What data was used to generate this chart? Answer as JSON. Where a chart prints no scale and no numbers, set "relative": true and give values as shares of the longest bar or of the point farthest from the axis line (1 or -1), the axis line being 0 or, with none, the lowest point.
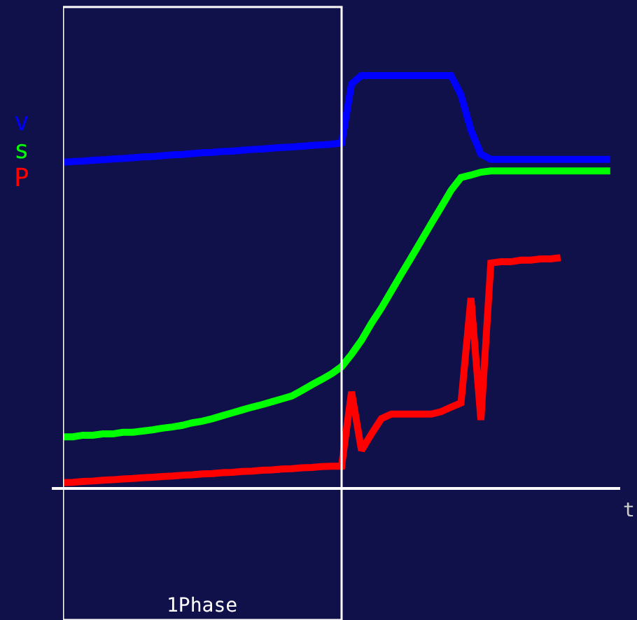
{
  "chart_data": {
    "type": "line",
    "relative": true,
    "xlabel": "t",
    "annotations": [
      "1Phase"
    ],
    "legend": "left",
    "marker": "none",
    "line_style": "solid",
    "categories": [
      null,
      null,
      null,
      null,
      null,
      null,
      null,
      null,
      null,
      null,
      null,
      null,
      null,
      null,
      null,
      null,
      null,
      null,
      null,
      null,
      null,
      null,
      null,
      null,
      null,
      null,
      null,
      null,
      null,
      null,
      null,
      null,
      null,
      null,
      null,
      null,
      null,
      null,
      null,
      null,
      null,
      null,
      null,
      null,
      null,
      null,
      null,
      null,
      null,
      null,
      null,
      null,
      null,
      null,
      null,
      null
    ],
    "series": [
      {
        "name": "v",
        "color": "#0000ff",
        "values": [
          0.79,
          0.792,
          0.793,
          0.795,
          0.796,
          0.798,
          0.799,
          0.801,
          0.803,
          0.804,
          0.806,
          0.808,
          0.809,
          0.811,
          0.813,
          0.814,
          0.816,
          0.817,
          0.819,
          0.821,
          0.822,
          0.824,
          0.826,
          0.827,
          0.829,
          0.831,
          0.832,
          0.834,
          0.837,
          0.98,
          1.0,
          1.0,
          1.0,
          1.0,
          1.0,
          1.0,
          1.0,
          1.0,
          1.0,
          1.0,
          0.953,
          0.868,
          0.81,
          0.797,
          0.797,
          0.797,
          0.797,
          0.797,
          0.797,
          0.797,
          0.797,
          0.797,
          0.797,
          0.797,
          0.797,
          0.797
        ]
      },
      {
        "name": "s",
        "color": "#00ff00",
        "values": [
          0.125,
          0.125,
          0.129,
          0.129,
          0.132,
          0.132,
          0.136,
          0.136,
          0.139,
          0.142,
          0.146,
          0.149,
          0.153,
          0.159,
          0.163,
          0.169,
          0.176,
          0.183,
          0.19,
          0.197,
          0.203,
          0.21,
          0.217,
          0.224,
          0.237,
          0.251,
          0.264,
          0.278,
          0.295,
          0.325,
          0.359,
          0.4,
          0.437,
          0.478,
          0.519,
          0.559,
          0.6,
          0.641,
          0.681,
          0.722,
          0.753,
          0.759,
          0.766,
          0.769,
          0.769,
          0.769,
          0.769,
          0.769,
          0.769,
          0.769,
          0.769,
          0.769,
          0.769,
          0.769,
          0.769,
          0.769
        ]
      },
      {
        "name": "P",
        "color": "#ff0000",
        "values": [
          0.014,
          0.015,
          0.017,
          0.018,
          0.02,
          0.021,
          0.023,
          0.024,
          0.026,
          0.027,
          0.029,
          0.03,
          0.032,
          0.033,
          0.035,
          0.036,
          0.038,
          0.039,
          0.041,
          0.042,
          0.044,
          0.045,
          0.047,
          0.048,
          0.05,
          0.051,
          0.053,
          0.054,
          0.054,
          0.234,
          0.092,
          0.132,
          0.169,
          0.18,
          0.18,
          0.18,
          0.18,
          0.18,
          0.186,
          0.197,
          0.207,
          0.461,
          0.166,
          0.546,
          0.549,
          0.549,
          0.553,
          0.553,
          0.556,
          0.556,
          0.559,
          null,
          null,
          null,
          null,
          null
        ]
      }
    ]
  }
}
